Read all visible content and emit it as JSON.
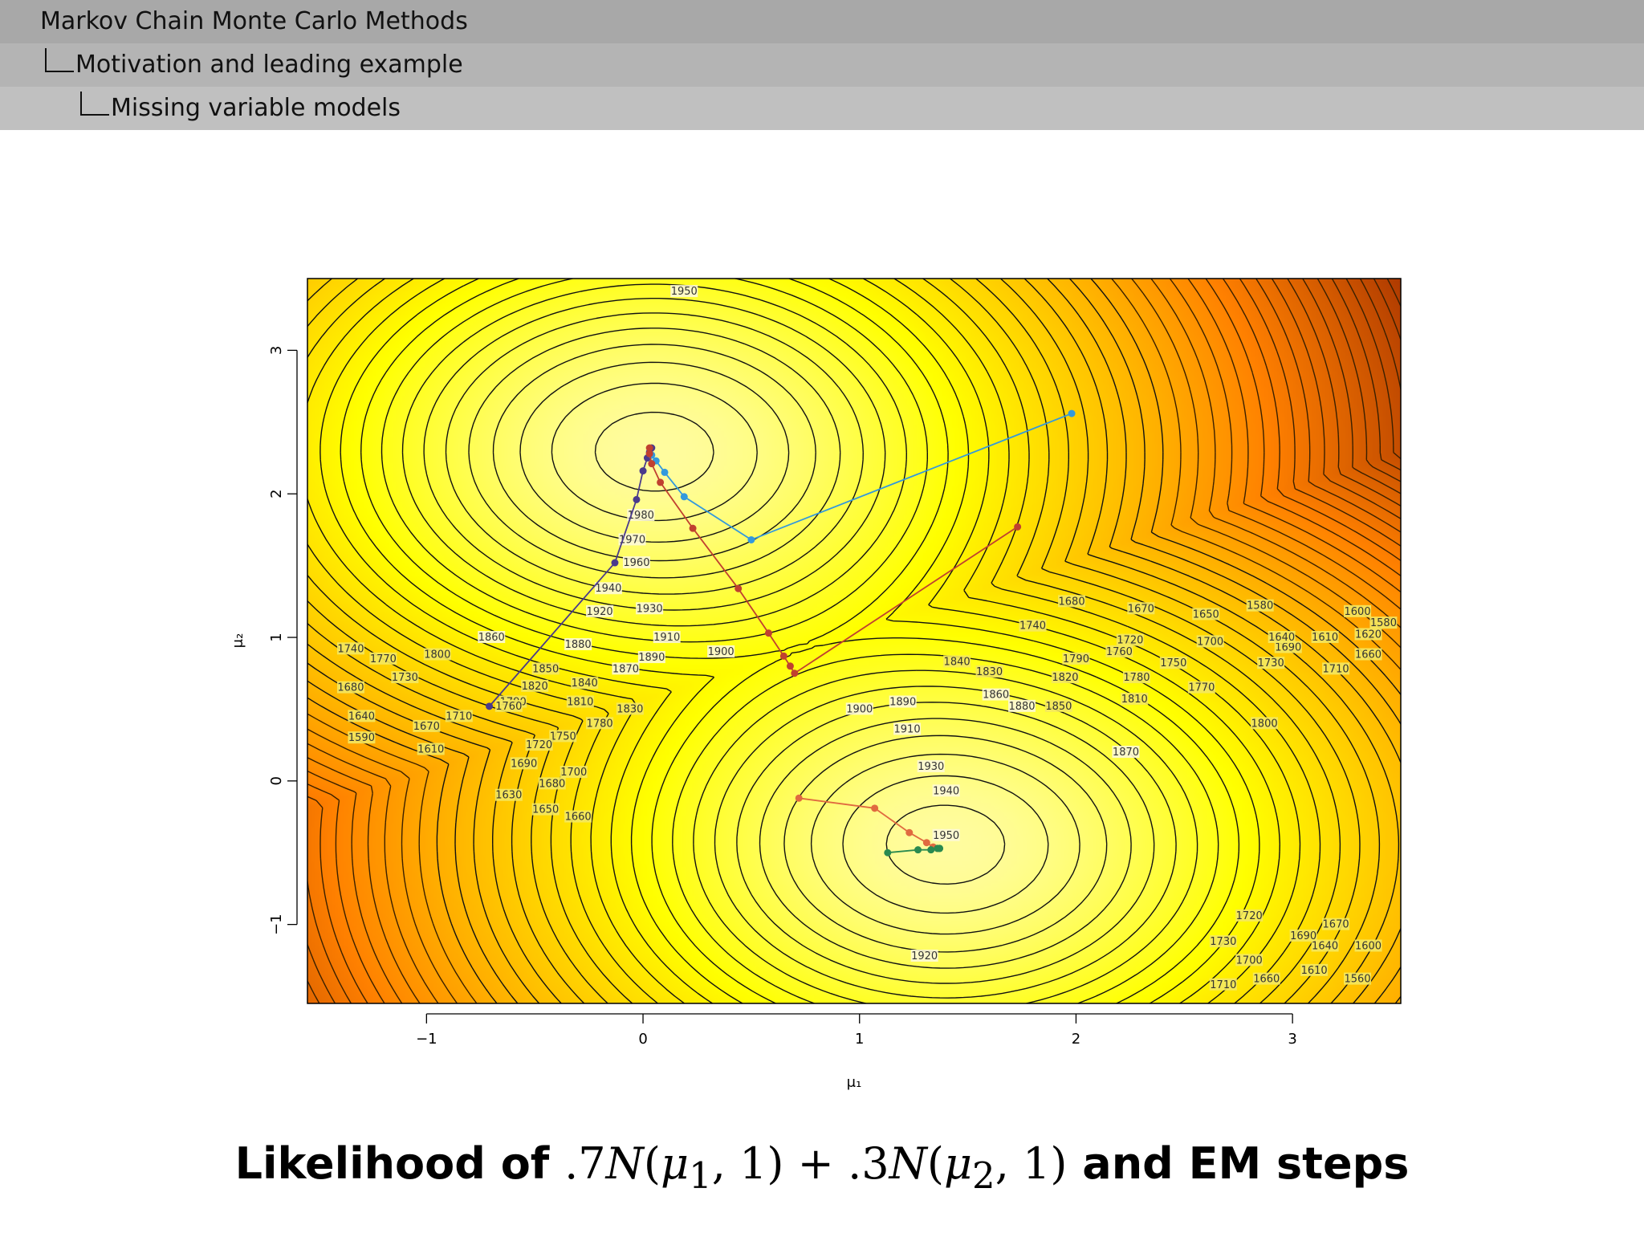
{
  "header": {
    "section": "Markov Chain Monte Carlo Methods",
    "subsection": "Motivation and leading example",
    "subsubsection": "Missing variable models"
  },
  "caption": {
    "prefix": "Likelihood of",
    "c1": ".7",
    "n1": "N",
    "m1": "μ",
    "s1": "1",
    "o1": ", 1) + ",
    "c2": ".3",
    "n2": "N",
    "m2": "μ",
    "s2": "2",
    "o2": ", 1)",
    "suffix": "and EM steps"
  },
  "chart_data": {
    "type": "contour",
    "xlabel": "μ₁",
    "ylabel": "μ₂",
    "xlim": [
      -1.55,
      3.5
    ],
    "ylim": [
      -1.55,
      3.5
    ],
    "xticks": [
      -1,
      0,
      1,
      2,
      3
    ],
    "yticks": [
      -1,
      0,
      1,
      2,
      3
    ],
    "colormap": [
      "#fffbe8",
      "#ffff00",
      "#ff8000",
      "#8a1a00"
    ],
    "levels": {
      "min": 1500,
      "max": 1990,
      "step": 10
    },
    "modes": [
      {
        "x": 0.05,
        "y": 2.3
      },
      {
        "x": 1.4,
        "y": -0.45
      }
    ],
    "contour_labels": [
      {
        "x": 0.19,
        "y": 3.41,
        "text": "1950"
      },
      {
        "x": -0.01,
        "y": 1.85,
        "text": "1980"
      },
      {
        "x": -0.05,
        "y": 1.68,
        "text": "1970"
      },
      {
        "x": -0.03,
        "y": 1.52,
        "text": "1960"
      },
      {
        "x": -0.16,
        "y": 1.34,
        "text": "1940"
      },
      {
        "x": -0.2,
        "y": 1.18,
        "text": "1920"
      },
      {
        "x": 0.03,
        "y": 1.2,
        "text": "1930"
      },
      {
        "x": 0.11,
        "y": 1.0,
        "text": "1910"
      },
      {
        "x": 0.04,
        "y": 0.86,
        "text": "1890"
      },
      {
        "x": 0.36,
        "y": 0.9,
        "text": "1900"
      },
      {
        "x": 1.0,
        "y": 0.5,
        "text": "1900"
      },
      {
        "x": 1.2,
        "y": 0.55,
        "text": "1890"
      },
      {
        "x": 1.22,
        "y": 0.36,
        "text": "1910"
      },
      {
        "x": 1.33,
        "y": 0.1,
        "text": "1930"
      },
      {
        "x": 1.4,
        "y": -0.07,
        "text": "1940"
      },
      {
        "x": 1.4,
        "y": -0.38,
        "text": "1950"
      },
      {
        "x": 1.3,
        "y": -1.22,
        "text": "1920"
      },
      {
        "x": -0.7,
        "y": 1.0,
        "text": "1860"
      },
      {
        "x": -0.3,
        "y": 0.95,
        "text": "1880"
      },
      {
        "x": -0.08,
        "y": 0.78,
        "text": "1870"
      },
      {
        "x": -0.45,
        "y": 0.78,
        "text": "1850"
      },
      {
        "x": -0.5,
        "y": 0.66,
        "text": "1820"
      },
      {
        "x": -0.27,
        "y": 0.68,
        "text": "1840"
      },
      {
        "x": -0.6,
        "y": 0.55,
        "text": "1790"
      },
      {
        "x": -0.29,
        "y": 0.55,
        "text": "1810"
      },
      {
        "x": -0.06,
        "y": 0.5,
        "text": "1830"
      },
      {
        "x": -0.2,
        "y": 0.4,
        "text": "1780"
      },
      {
        "x": -0.37,
        "y": 0.31,
        "text": "1750"
      },
      {
        "x": -0.62,
        "y": 0.52,
        "text": "1760"
      },
      {
        "x": -0.85,
        "y": 0.45,
        "text": "1710"
      },
      {
        "x": -0.48,
        "y": 0.25,
        "text": "1720"
      },
      {
        "x": -0.55,
        "y": 0.12,
        "text": "1690"
      },
      {
        "x": -0.32,
        "y": 0.06,
        "text": "1700"
      },
      {
        "x": -0.42,
        "y": -0.02,
        "text": "1680"
      },
      {
        "x": -0.95,
        "y": 0.88,
        "text": "1800"
      },
      {
        "x": -1.2,
        "y": 0.85,
        "text": "1770"
      },
      {
        "x": -1.1,
        "y": 0.72,
        "text": "1730"
      },
      {
        "x": -1.35,
        "y": 0.92,
        "text": "1740"
      },
      {
        "x": -1.35,
        "y": 0.65,
        "text": "1680"
      },
      {
        "x": -1.3,
        "y": 0.45,
        "text": "1640"
      },
      {
        "x": -1.0,
        "y": 0.38,
        "text": "1670"
      },
      {
        "x": -1.3,
        "y": 0.3,
        "text": "1590"
      },
      {
        "x": -0.98,
        "y": 0.22,
        "text": "1610"
      },
      {
        "x": -0.62,
        "y": -0.1,
        "text": "1630"
      },
      {
        "x": -0.45,
        "y": -0.2,
        "text": "1650"
      },
      {
        "x": -0.3,
        "y": -0.25,
        "text": "1660"
      },
      {
        "x": 1.45,
        "y": 0.83,
        "text": "1840"
      },
      {
        "x": 1.6,
        "y": 0.76,
        "text": "1830"
      },
      {
        "x": 1.63,
        "y": 0.6,
        "text": "1860"
      },
      {
        "x": 1.75,
        "y": 0.52,
        "text": "1880"
      },
      {
        "x": 1.92,
        "y": 0.52,
        "text": "1850"
      },
      {
        "x": 1.95,
        "y": 0.72,
        "text": "1820"
      },
      {
        "x": 2.0,
        "y": 0.85,
        "text": "1790"
      },
      {
        "x": 2.2,
        "y": 0.9,
        "text": "1760"
      },
      {
        "x": 2.28,
        "y": 0.72,
        "text": "1780"
      },
      {
        "x": 2.27,
        "y": 0.57,
        "text": "1810"
      },
      {
        "x": 2.23,
        "y": 0.2,
        "text": "1870"
      },
      {
        "x": 2.45,
        "y": 0.82,
        "text": "1750"
      },
      {
        "x": 2.58,
        "y": 0.65,
        "text": "1770"
      },
      {
        "x": 2.87,
        "y": 0.4,
        "text": "1800"
      },
      {
        "x": 2.62,
        "y": 0.97,
        "text": "1700"
      },
      {
        "x": 2.9,
        "y": 0.82,
        "text": "1730"
      },
      {
        "x": 2.98,
        "y": 0.93,
        "text": "1690"
      },
      {
        "x": 3.2,
        "y": 0.78,
        "text": "1710"
      },
      {
        "x": 3.35,
        "y": 0.88,
        "text": "1660"
      },
      {
        "x": 2.25,
        "y": 0.98,
        "text": "1720"
      },
      {
        "x": 1.8,
        "y": 1.08,
        "text": "1740"
      },
      {
        "x": 1.98,
        "y": 1.25,
        "text": "1680"
      },
      {
        "x": 2.3,
        "y": 1.2,
        "text": "1670"
      },
      {
        "x": 2.6,
        "y": 1.16,
        "text": "1650"
      },
      {
        "x": 2.95,
        "y": 1.0,
        "text": "1640"
      },
      {
        "x": 3.15,
        "y": 1.0,
        "text": "1610"
      },
      {
        "x": 3.35,
        "y": 1.02,
        "text": "1620"
      },
      {
        "x": 3.42,
        "y": 1.1,
        "text": "1580"
      },
      {
        "x": 3.3,
        "y": 1.18,
        "text": "1600"
      },
      {
        "x": 2.85,
        "y": 1.22,
        "text": "1580"
      },
      {
        "x": 2.8,
        "y": -0.94,
        "text": "1720"
      },
      {
        "x": 3.2,
        "y": -1.0,
        "text": "1670"
      },
      {
        "x": 3.05,
        "y": -1.08,
        "text": "1690"
      },
      {
        "x": 2.68,
        "y": -1.12,
        "text": "1730"
      },
      {
        "x": 2.8,
        "y": -1.25,
        "text": "1700"
      },
      {
        "x": 3.15,
        "y": -1.15,
        "text": "1640"
      },
      {
        "x": 3.35,
        "y": -1.15,
        "text": "1600"
      },
      {
        "x": 2.88,
        "y": -1.38,
        "text": "1660"
      },
      {
        "x": 3.1,
        "y": -1.32,
        "text": "1610"
      },
      {
        "x": 2.68,
        "y": -1.42,
        "text": "1710"
      },
      {
        "x": 3.3,
        "y": -1.38,
        "text": "1560"
      }
    ],
    "series": [
      {
        "color": "#4a3a8c",
        "x": [
          -0.71,
          -0.13,
          -0.03,
          0.0,
          0.02,
          0.03,
          0.04
        ],
        "y": [
          0.52,
          1.52,
          1.96,
          2.16,
          2.25,
          2.29,
          2.32
        ]
      },
      {
        "color": "#3399dd",
        "x": [
          1.98,
          0.5,
          0.19,
          0.1,
          0.06,
          0.04
        ],
        "y": [
          2.56,
          1.68,
          1.98,
          2.15,
          2.23,
          2.27
        ]
      },
      {
        "color": "#c04030",
        "x": [
          1.73,
          0.7,
          0.68,
          0.65,
          0.58,
          0.44,
          0.23,
          0.08,
          0.04,
          0.03,
          0.03
        ],
        "y": [
          1.77,
          0.75,
          0.8,
          0.87,
          1.03,
          1.34,
          1.76,
          2.08,
          2.21,
          2.28,
          2.32
        ]
      },
      {
        "color": "#e06a40",
        "x": [
          0.72,
          1.07,
          1.23,
          1.31,
          1.34,
          1.36
        ],
        "y": [
          -0.12,
          -0.19,
          -0.36,
          -0.43,
          -0.46,
          -0.47
        ]
      },
      {
        "color": "#2a8a50",
        "x": [
          1.13,
          1.27,
          1.33,
          1.36,
          1.37,
          1.37
        ],
        "y": [
          -0.5,
          -0.48,
          -0.48,
          -0.47,
          -0.47,
          -0.47
        ]
      }
    ]
  }
}
